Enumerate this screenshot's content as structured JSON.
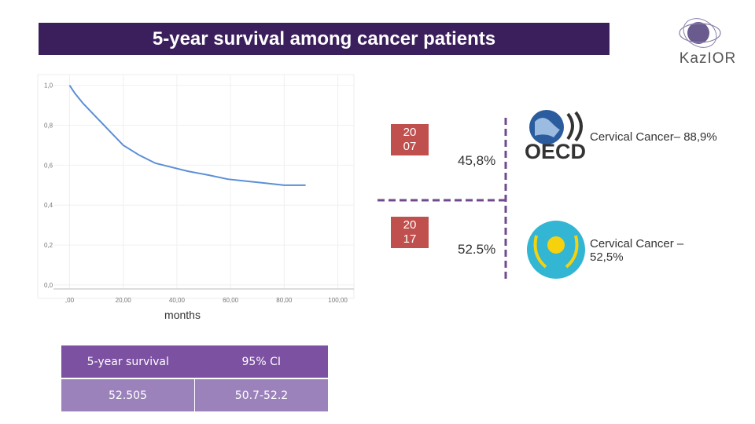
{
  "header": {
    "title": "5-year survival among cancer patients",
    "logo": "KazIOR"
  },
  "chart_data": {
    "type": "line",
    "x_label": "months",
    "color": "#5b8fd6",
    "x": [
      0,
      2,
      5,
      10,
      15,
      20,
      26,
      32,
      38,
      44,
      52,
      59,
      66,
      73,
      80,
      88
    ],
    "values": [
      1.0,
      0.96,
      0.91,
      0.84,
      0.77,
      0.7,
      0.65,
      0.61,
      0.59,
      0.57,
      0.55,
      0.53,
      0.52,
      0.51,
      0.5,
      0.5
    ],
    "xlim": [
      -6,
      106
    ],
    "ylim": [
      -0.02,
      1.05
    ],
    "xticks": [
      {
        "value": 0,
        "label": ",00"
      },
      {
        "value": 20,
        "label": "20,00"
      },
      {
        "value": 40,
        "label": "40,00"
      },
      {
        "value": 60,
        "label": "60,00"
      },
      {
        "value": 80,
        "label": "80,00"
      },
      {
        "value": 100,
        "label": "100,00"
      }
    ],
    "yticks": [
      {
        "value": 0,
        "label": "0,0"
      },
      {
        "value": 0.2,
        "label": "0,2"
      },
      {
        "value": 0.4,
        "label": "0,4"
      },
      {
        "value": 0.6,
        "label": "0,6"
      },
      {
        "value": 0.8,
        "label": "0,8"
      },
      {
        "value": 1,
        "label": "1,0"
      }
    ],
    "grid": true
  },
  "table": {
    "header": [
      "5-year survival",
      "95% CI"
    ],
    "rows": [
      [
        "52.505",
        "50.7-52.2"
      ]
    ]
  },
  "comparison": {
    "years": [
      "2007",
      "2017"
    ],
    "rates": [
      "45,8%",
      "52.5%"
    ],
    "oecd": {
      "logo": "OECD",
      "label": "Cervical Cancer– 88,9%"
    },
    "kazakhstan": {
      "label": "Cervical Cancer – 52,5%"
    }
  }
}
